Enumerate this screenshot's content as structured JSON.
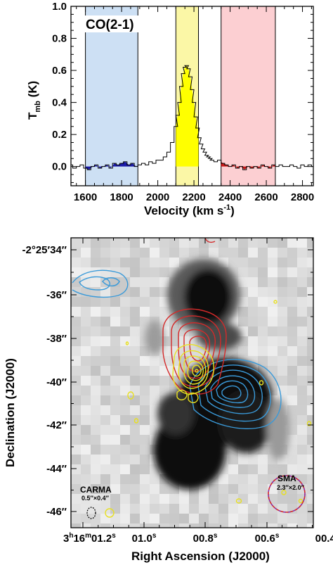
{
  "chart_data": [
    {
      "type": "line",
      "label": "CO(2-1)",
      "xlabel": "Velocity (km s",
      "xlabel_sup": "-1",
      "ylabel_main": "T",
      "ylabel_sub": "mb",
      "ylabel_unit": " (K)",
      "xlim": [
        1520,
        2860
      ],
      "ylim": [
        -0.12,
        1.0
      ],
      "xticks": [
        "1600",
        "1800",
        "2000",
        "2200",
        "2400",
        "2600",
        "2800"
      ],
      "xtick_values": [
        1600,
        1800,
        2000,
        2200,
        2400,
        2600,
        2800
      ],
      "yticks": [
        "0.0",
        "0.2",
        "0.4",
        "0.6",
        "0.8",
        "1.0"
      ],
      "ytick_values": [
        0.0,
        0.2,
        0.4,
        0.6,
        0.8,
        1.0
      ],
      "bands": [
        {
          "x0": 1600,
          "x1": 1890,
          "color": "#cde0f4"
        },
        {
          "x0": 2100,
          "x1": 2225,
          "color": "#fbf7a6"
        },
        {
          "x0": 2350,
          "x1": 2650,
          "color": "#fccfd2"
        }
      ],
      "fills": [
        {
          "x0": 1600,
          "x1": 1890,
          "color": "#1a1aa8"
        },
        {
          "x0": 2100,
          "x1": 2225,
          "color": "#ffff00"
        },
        {
          "x0": 2350,
          "x1": 2650,
          "color": "#c81818"
        }
      ],
      "series": [
        {
          "x": [
            1520,
            1540,
            1560,
            1580,
            1600,
            1620,
            1640,
            1660,
            1680,
            1700,
            1720,
            1740,
            1760,
            1780,
            1800,
            1820,
            1840,
            1860,
            1880,
            1900,
            1920,
            1940,
            1960,
            1980,
            2000,
            2020,
            2040,
            2060,
            2080,
            2100,
            2110,
            2120,
            2130,
            2140,
            2150,
            2160,
            2170,
            2180,
            2190,
            2200,
            2210,
            2220,
            2230,
            2240,
            2250,
            2260,
            2270,
            2280,
            2290,
            2300,
            2320,
            2340,
            2360,
            2380,
            2400,
            2420,
            2440,
            2460,
            2480,
            2500,
            2520,
            2540,
            2560,
            2580,
            2600,
            2620,
            2640,
            2660,
            2680,
            2700,
            2720,
            2740,
            2760,
            2780,
            2800,
            2820,
            2840,
            2860
          ],
          "y": [
            0.01,
            -0.01,
            0.0,
            0.01,
            -0.01,
            -0.02,
            0.0,
            0.01,
            -0.01,
            0.0,
            0.01,
            -0.01,
            0.02,
            0.01,
            0.02,
            0.03,
            0.01,
            0.02,
            0.0,
            0.01,
            0.02,
            0.01,
            0.03,
            0.02,
            0.04,
            0.04,
            0.06,
            0.09,
            0.15,
            0.25,
            0.32,
            0.4,
            0.5,
            0.58,
            0.62,
            0.63,
            0.61,
            0.56,
            0.48,
            0.4,
            0.31,
            0.24,
            0.18,
            0.14,
            0.11,
            0.09,
            0.07,
            0.06,
            0.05,
            0.04,
            0.03,
            0.04,
            0.02,
            0.01,
            0.0,
            0.01,
            -0.01,
            0.0,
            -0.02,
            0.0,
            -0.01,
            0.0,
            -0.01,
            0.01,
            0.0,
            -0.01,
            0.01,
            0.0,
            0.01,
            0.0,
            0.0,
            0.01,
            0.0,
            -0.01,
            0.01,
            0.0,
            0.01,
            0.0
          ]
        }
      ]
    },
    {
      "type": "map",
      "xlabel": "Right Ascension (J2000)",
      "ylabel": "Declination (J2000)",
      "ra_ticks": [
        {
          "h": "3",
          "m": "16",
          "s": "01.2",
          "full": true
        },
        {
          "s": "01.0"
        },
        {
          "s": "00.8"
        },
        {
          "s": "00.6"
        },
        {
          "s": "00.4"
        }
      ],
      "dec_ticks": [
        {
          "text": "-2°25′34″"
        },
        {
          "text": "-36″"
        },
        {
          "text": "-38″"
        },
        {
          "text": "-40″"
        },
        {
          "text": "-42″"
        },
        {
          "text": "-44″"
        },
        {
          "text": "-46″"
        }
      ],
      "contour_colors": {
        "blue": "#3a9ad9",
        "red": "#d42a2a",
        "yellow": "#e8e020"
      },
      "annotations": {
        "sma_label": "SMA",
        "sma_beam": "2.3″×2.0″",
        "carma_label": "CARMA",
        "carma_beam": "0.5″×0.4″"
      }
    }
  ]
}
